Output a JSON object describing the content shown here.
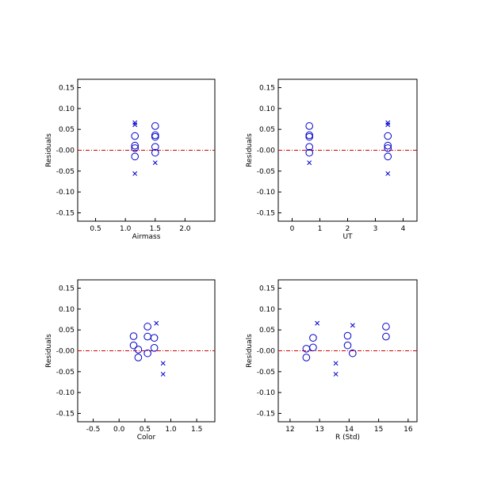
{
  "colors": {
    "marker": "#0000cc",
    "zero_line": "#cc0000",
    "axis": "#000000"
  },
  "marker_legend": {
    "circle": "open-circle",
    "cross": "x-cross"
  },
  "chart_data": [
    {
      "type": "scatter",
      "xlabel": "Airmass",
      "ylabel": "Residuals",
      "xlim": [
        0.2,
        2.5
      ],
      "ylim": [
        -0.17,
        0.17
      ],
      "xticks": [
        "0.5",
        "1.0",
        "1.5",
        "2.0"
      ],
      "xtick_values": [
        0.5,
        1.0,
        1.5,
        2.0
      ],
      "yticks": [
        "-0.15",
        "-0.10",
        "-0.05",
        "-0.00",
        "0.05",
        "0.10",
        "0.15"
      ],
      "ytick_values": [
        -0.15,
        -0.1,
        -0.05,
        0.0,
        0.05,
        0.1,
        0.15
      ],
      "zero_line": 0.0,
      "series": [
        {
          "marker": "circle",
          "points": [
            [
              1.16,
              0.034
            ],
            [
              1.16,
              0.011
            ],
            [
              1.16,
              -0.015
            ],
            [
              1.16,
              0.005
            ],
            [
              1.5,
              0.058
            ],
            [
              1.5,
              0.036
            ],
            [
              1.5,
              0.032
            ],
            [
              1.5,
              0.008
            ],
            [
              1.5,
              -0.006
            ]
          ]
        },
        {
          "marker": "cross",
          "points": [
            [
              1.16,
              0.066
            ],
            [
              1.16,
              0.061
            ],
            [
              1.16,
              -0.056
            ],
            [
              1.5,
              -0.03
            ]
          ]
        }
      ]
    },
    {
      "type": "scatter",
      "xlabel": "UT",
      "ylabel": "Residuals",
      "xlim": [
        -0.5,
        4.5
      ],
      "ylim": [
        -0.17,
        0.17
      ],
      "xticks": [
        "0",
        "1",
        "2",
        "3",
        "4"
      ],
      "xtick_values": [
        0,
        1,
        2,
        3,
        4
      ],
      "yticks": [
        "-0.15",
        "-0.10",
        "-0.05",
        "-0.00",
        "0.05",
        "0.10",
        "0.15"
      ],
      "ytick_values": [
        -0.15,
        -0.1,
        -0.05,
        0.0,
        0.05,
        0.1,
        0.15
      ],
      "zero_line": 0.0,
      "series": [
        {
          "marker": "circle",
          "points": [
            [
              0.62,
              0.058
            ],
            [
              0.62,
              0.036
            ],
            [
              0.62,
              0.032
            ],
            [
              0.62,
              0.008
            ],
            [
              0.62,
              -0.006
            ],
            [
              3.45,
              0.034
            ],
            [
              3.45,
              0.011
            ],
            [
              3.45,
              0.005
            ],
            [
              3.45,
              -0.015
            ]
          ]
        },
        {
          "marker": "cross",
          "points": [
            [
              0.62,
              -0.03
            ],
            [
              3.45,
              0.066
            ],
            [
              3.45,
              0.061
            ],
            [
              3.45,
              -0.056
            ]
          ]
        }
      ]
    },
    {
      "type": "scatter",
      "xlabel": "Color",
      "ylabel": "Residuals",
      "xlim": [
        -0.8,
        1.85
      ],
      "ylim": [
        -0.17,
        0.17
      ],
      "xticks": [
        "-0.5",
        "0.0",
        "0.5",
        "1.0",
        "1.5"
      ],
      "xtick_values": [
        -0.5,
        0.0,
        0.5,
        1.0,
        1.5
      ],
      "yticks": [
        "-0.15",
        "-0.10",
        "-0.05",
        "-0.00",
        "0.05",
        "0.10",
        "0.15"
      ],
      "ytick_values": [
        -0.15,
        -0.1,
        -0.05,
        0.0,
        0.05,
        0.1,
        0.15
      ],
      "zero_line": 0.0,
      "series": [
        {
          "marker": "circle",
          "points": [
            [
              0.28,
              0.035
            ],
            [
              0.28,
              0.013
            ],
            [
              0.37,
              0.003
            ],
            [
              0.37,
              -0.016
            ],
            [
              0.55,
              0.058
            ],
            [
              0.55,
              0.034
            ],
            [
              0.55,
              -0.006
            ],
            [
              0.68,
              0.031
            ],
            [
              0.68,
              0.007
            ]
          ]
        },
        {
          "marker": "cross",
          "points": [
            [
              0.72,
              0.066
            ],
            [
              0.85,
              -0.03
            ],
            [
              0.85,
              -0.056
            ]
          ]
        }
      ]
    },
    {
      "type": "scatter",
      "xlabel": "R (Std)",
      "ylabel": "Residuals",
      "xlim": [
        11.6,
        16.3
      ],
      "ylim": [
        -0.17,
        0.17
      ],
      "xticks": [
        "12",
        "13",
        "14",
        "15",
        "16"
      ],
      "xtick_values": [
        12,
        13,
        14,
        15,
        16
      ],
      "yticks": [
        "-0.15",
        "-0.10",
        "-0.05",
        "-0.00",
        "0.05",
        "0.10",
        "0.15"
      ],
      "ytick_values": [
        -0.15,
        -0.1,
        -0.05,
        0.0,
        0.05,
        0.1,
        0.15
      ],
      "zero_line": 0.0,
      "series": [
        {
          "marker": "circle",
          "points": [
            [
              12.55,
              0.005
            ],
            [
              12.55,
              -0.016
            ],
            [
              12.78,
              0.031
            ],
            [
              12.78,
              0.008
            ],
            [
              13.95,
              0.036
            ],
            [
              13.95,
              0.013
            ],
            [
              14.12,
              -0.006
            ],
            [
              15.25,
              0.058
            ],
            [
              15.25,
              0.034
            ]
          ]
        },
        {
          "marker": "cross",
          "points": [
            [
              12.92,
              0.066
            ],
            [
              13.55,
              -0.03
            ],
            [
              13.55,
              -0.056
            ],
            [
              14.12,
              0.061
            ]
          ]
        }
      ]
    }
  ]
}
